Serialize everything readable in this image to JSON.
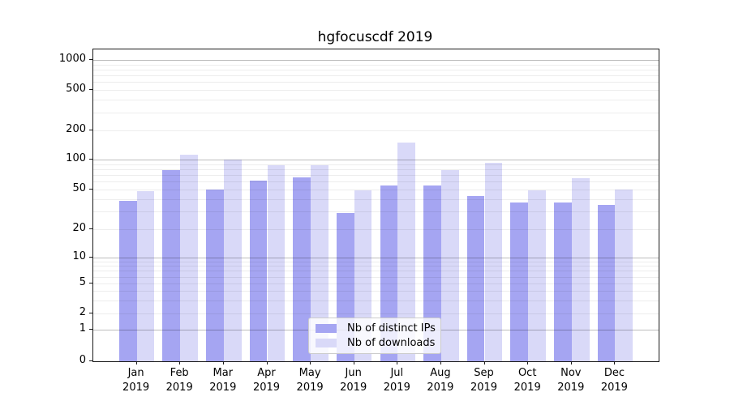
{
  "title": "hgfocuscdf 2019",
  "chart_data": {
    "type": "bar",
    "title": "hgfocuscdf 2019",
    "categories": [
      "Jan 2019",
      "Feb 2019",
      "Mar 2019",
      "Apr 2019",
      "May 2019",
      "Jun 2019",
      "Jul 2019",
      "Aug 2019",
      "Sep 2019",
      "Oct 2019",
      "Nov 2019",
      "Dec 2019"
    ],
    "series": [
      {
        "name": "Nb of distinct IPs",
        "color": "#a5a5f2",
        "values": [
          38,
          78,
          50,
          61,
          66,
          29,
          55,
          55,
          43,
          37,
          37,
          35
        ]
      },
      {
        "name": "Nb of downloads",
        "color": "#d9d9f8",
        "values": [
          48,
          112,
          100,
          88,
          88,
          49,
          150,
          78,
          94,
          49,
          65,
          50
        ]
      }
    ],
    "xlabel": "",
    "ylabel": "",
    "yscale": "log-like",
    "ylim": [
      0,
      1000
    ],
    "yticks": [
      0,
      1,
      2,
      5,
      10,
      20,
      50,
      100,
      200,
      500,
      1000
    ],
    "grid": true,
    "legend_position": "lower center"
  }
}
